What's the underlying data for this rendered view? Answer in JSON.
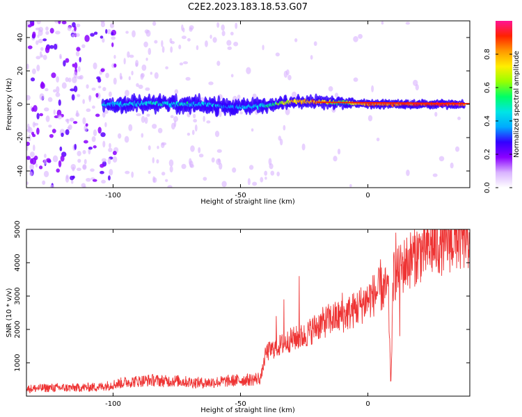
{
  "title": "C2E2.2023.183.18.53.G07",
  "chart_data": [
    {
      "type": "heatmap",
      "title": "C2E2.2023.183.18.53.G07",
      "xlabel": "Height of straight line (km)",
      "ylabel": "Frequency (Hz)",
      "xlim": [
        -134,
        40
      ],
      "ylim": [
        -50,
        50
      ],
      "x_ticks": [
        -100,
        -50,
        0
      ],
      "y_ticks": [
        -40,
        -20,
        0,
        20,
        40
      ],
      "colorbar": {
        "label": "Normalized spectral amplitude",
        "range": [
          0,
          1
        ],
        "ticks": [
          0.0,
          0.2,
          0.4,
          0.6,
          0.8
        ],
        "colormap": [
          "#ffffff",
          "#d9b3ff",
          "#8b00ff",
          "#3300ff",
          "#00aaff",
          "#00e5e5",
          "#00ff66",
          "#99ff00",
          "#ffee00",
          "#ff9900",
          "#ff2200",
          "#ff1493"
        ]
      },
      "ridge": [
        {
          "x": -104,
          "f": 0.0,
          "amp": 0.35
        },
        {
          "x": -95,
          "f": 0.0,
          "amp": 0.45
        },
        {
          "x": -85,
          "f": 0.5,
          "amp": 0.45
        },
        {
          "x": -75,
          "f": 0.0,
          "amp": 0.45
        },
        {
          "x": -65,
          "f": 0.0,
          "amp": 0.4
        },
        {
          "x": -55,
          "f": -1.5,
          "amp": 0.35
        },
        {
          "x": -45,
          "f": -1.5,
          "amp": 0.4
        },
        {
          "x": -38,
          "f": -0.5,
          "amp": 0.5
        },
        {
          "x": -30,
          "f": 1.5,
          "amp": 0.75
        },
        {
          "x": -20,
          "f": 1.5,
          "amp": 0.8
        },
        {
          "x": -10,
          "f": 1.0,
          "amp": 0.55
        },
        {
          "x": 0,
          "f": 0.0,
          "amp": 0.85
        },
        {
          "x": 10,
          "f": 0.0,
          "amp": 0.85
        },
        {
          "x": 20,
          "f": 0.0,
          "amp": 0.9
        },
        {
          "x": 30,
          "f": 0.0,
          "amp": 0.9
        },
        {
          "x": 38,
          "f": 0.0,
          "amp": 0.9
        }
      ]
    },
    {
      "type": "line",
      "xlabel": "Height of straight line (km)",
      "ylabel": "SNR (10 * v/v)",
      "xlim": [
        -134,
        40
      ],
      "ylim": [
        0,
        5000
      ],
      "x_ticks": [
        -100,
        -50,
        0
      ],
      "y_ticks": [
        1000,
        2000,
        3000,
        4000,
        5000
      ],
      "color": "#ee3333",
      "series": [
        {
          "x": [
            -134,
            -125,
            -115,
            -105,
            -100,
            -95,
            -90,
            -85,
            -80,
            -75,
            -70,
            -65,
            -60,
            -55,
            -50,
            -45,
            -42,
            -40,
            -35,
            -30,
            -25,
            -20,
            -15,
            -10,
            -5,
            0,
            5,
            8,
            9,
            10,
            12,
            15,
            20,
            25,
            30,
            35,
            40
          ],
          "values": [
            220,
            250,
            250,
            280,
            350,
            420,
            450,
            480,
            450,
            460,
            420,
            400,
            420,
            450,
            480,
            500,
            550,
            1300,
            1500,
            1700,
            1800,
            2100,
            2300,
            2400,
            2600,
            2900,
            3200,
            3200,
            300,
            3600,
            3700,
            4000,
            4300,
            4500,
            4650,
            4750,
            4800
          ]
        }
      ],
      "spikes": [
        {
          "x": -36,
          "y": 2400
        },
        {
          "x": -33,
          "y": 2900
        },
        {
          "x": -27,
          "y": 3600
        },
        {
          "x": -10,
          "y": 3100
        },
        {
          "x": 5,
          "y": 4100
        },
        {
          "x": 11,
          "y": 4900
        },
        {
          "x": 12.5,
          "y": 1800
        }
      ]
    }
  ]
}
